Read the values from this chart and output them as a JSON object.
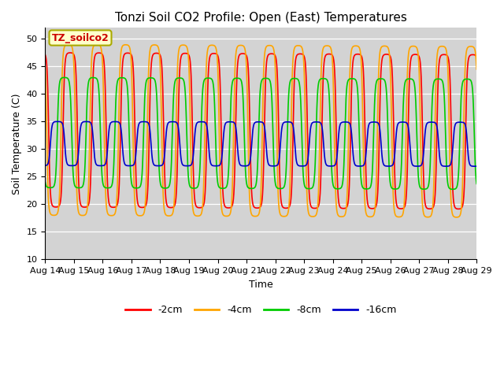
{
  "title": "Tonzi Soil CO2 Profile: Open (East) Temperatures",
  "xlabel": "Time",
  "ylabel": "Soil Temperature (C)",
  "ylim": [
    10,
    52
  ],
  "x_tick_labels": [
    "Aug 14",
    "Aug 15",
    "Aug 16",
    "Aug 17",
    "Aug 18",
    "Aug 19",
    "Aug 20",
    "Aug 21",
    "Aug 22",
    "Aug 23",
    "Aug 24",
    "Aug 25",
    "Aug 26",
    "Aug 27",
    "Aug 28",
    "Aug 29"
  ],
  "colors": {
    "-2cm": "#ff0000",
    "-4cm": "#ffa500",
    "-8cm": "#00cc00",
    "-16cm": "#0000cc"
  },
  "annotation_text": "TZ_soilco2",
  "annotation_color": "#cc0000",
  "annotation_bg": "#ffffcc",
  "annotation_edge": "#aaaa00",
  "bg_color": "#d3d3d3",
  "fig_bg": "#ffffff",
  "n_days": 15,
  "n_pts": 2000,
  "amp_2cm": 14.0,
  "amp_4cm": 15.5,
  "amp_8cm": 10.0,
  "amp_16cm": 4.0,
  "mean_2cm": 33.5,
  "mean_4cm": 33.5,
  "mean_8cm": 33.0,
  "mean_16cm": 31.0,
  "phase_2cm": 0.62,
  "phase_4cm": 0.55,
  "phase_8cm": 0.42,
  "phase_16cm": 0.18,
  "skew": 3.0,
  "trend_2cm": -0.25,
  "trend_4cm": -0.25,
  "trend_8cm": -0.2,
  "trend_16cm": -0.08,
  "yticks": [
    10,
    15,
    20,
    25,
    30,
    35,
    40,
    45,
    50
  ],
  "linewidth": 1.2,
  "title_fontsize": 11,
  "label_fontsize": 9,
  "tick_fontsize": 8
}
